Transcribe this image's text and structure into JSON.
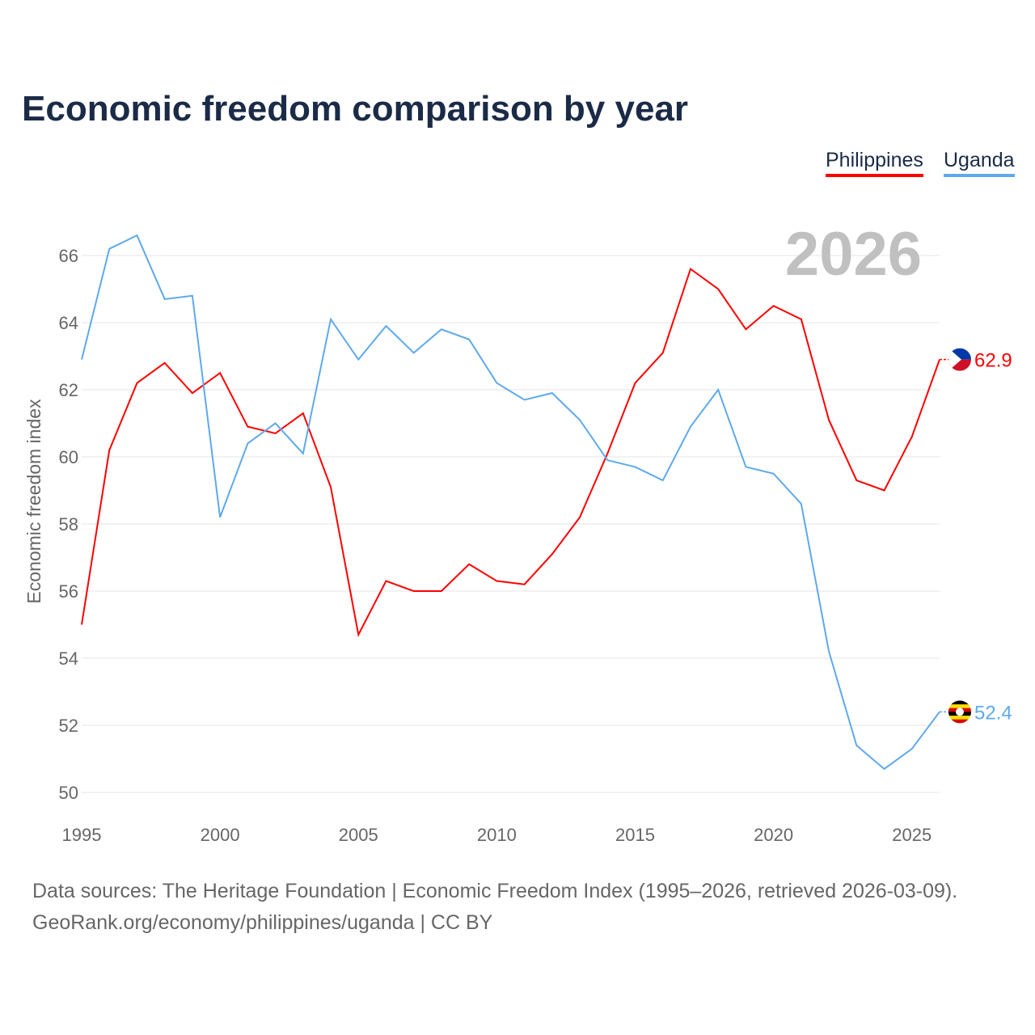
{
  "chart_data": {
    "type": "line",
    "title": "Economic freedom comparison by year",
    "xlabel": "",
    "ylabel": "Economic freedom index",
    "xlim": [
      1995,
      2026
    ],
    "ylim": [
      50,
      67
    ],
    "yticks": [
      50,
      52,
      54,
      56,
      58,
      60,
      62,
      64,
      66
    ],
    "xticks": [
      1995,
      2000,
      2005,
      2010,
      2015,
      2020,
      2025
    ],
    "grid": true,
    "legend_position": "top-right",
    "current_year_label": "2026",
    "x": [
      1995,
      1996,
      1997,
      1998,
      1999,
      2000,
      2001,
      2002,
      2003,
      2004,
      2005,
      2006,
      2007,
      2008,
      2009,
      2010,
      2011,
      2012,
      2013,
      2014,
      2015,
      2016,
      2017,
      2018,
      2019,
      2020,
      2021,
      2022,
      2023,
      2024,
      2025,
      2026
    ],
    "series": [
      {
        "name": "Philippines",
        "color": "#ff0000",
        "end_label": "62.9",
        "values": [
          55.0,
          60.2,
          62.2,
          62.8,
          61.9,
          62.5,
          60.9,
          60.7,
          61.3,
          59.1,
          54.7,
          56.3,
          56.0,
          56.0,
          56.8,
          56.3,
          56.2,
          57.1,
          58.2,
          60.1,
          62.2,
          63.1,
          65.6,
          65.0,
          63.8,
          64.5,
          64.1,
          61.1,
          59.3,
          59.0,
          60.6,
          62.9
        ]
      },
      {
        "name": "Uganda",
        "color": "#5ea9ec",
        "end_label": "52.4",
        "values": [
          62.9,
          66.2,
          66.6,
          64.7,
          64.8,
          58.2,
          60.4,
          61.0,
          60.1,
          64.1,
          62.9,
          63.9,
          63.1,
          63.8,
          63.5,
          62.2,
          61.7,
          61.9,
          61.1,
          59.9,
          59.7,
          59.3,
          60.9,
          62.0,
          59.7,
          59.5,
          58.6,
          54.2,
          51.4,
          50.7,
          51.3,
          52.4
        ]
      }
    ]
  },
  "footer": {
    "sources": "Data sources: The Heritage Foundation | Economic Freedom Index (1995–2026, retrieved 2026-03-09).",
    "credit": "GeoRank.org/economy/philippines/uganda | CC BY"
  }
}
